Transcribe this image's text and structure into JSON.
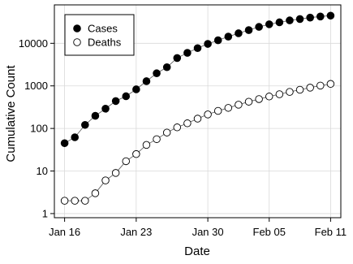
{
  "chart_data": {
    "type": "scatter",
    "subtype": "line-with-markers",
    "title": "",
    "xlabel": "Date",
    "ylabel": "Cumulative Count",
    "yscale": "log",
    "xlim": [
      "2020-01-15",
      "2020-02-12"
    ],
    "ylim": [
      0.8,
      80000
    ],
    "grid": true,
    "legend_position": "top-left",
    "x_ticks": [
      {
        "date": "2020-01-16",
        "label": "Jan 16"
      },
      {
        "date": "2020-01-23",
        "label": "Jan 23"
      },
      {
        "date": "2020-01-30",
        "label": "Jan 30"
      },
      {
        "date": "2020-02-05",
        "label": "Feb 05"
      },
      {
        "date": "2020-02-11",
        "label": "Feb 11"
      }
    ],
    "y_ticks": [
      {
        "value": 1,
        "label": "1"
      },
      {
        "value": 10,
        "label": "10"
      },
      {
        "value": 100,
        "label": "100"
      },
      {
        "value": 1000,
        "label": "1000"
      },
      {
        "value": 10000,
        "label": "10000"
      }
    ],
    "dates": [
      "2020-01-16",
      "2020-01-17",
      "2020-01-18",
      "2020-01-19",
      "2020-01-20",
      "2020-01-21",
      "2020-01-22",
      "2020-01-23",
      "2020-01-24",
      "2020-01-25",
      "2020-01-26",
      "2020-01-27",
      "2020-01-28",
      "2020-01-29",
      "2020-01-30",
      "2020-01-31",
      "2020-02-01",
      "2020-02-02",
      "2020-02-03",
      "2020-02-04",
      "2020-02-05",
      "2020-02-06",
      "2020-02-07",
      "2020-02-08",
      "2020-02-09",
      "2020-02-10",
      "2020-02-11"
    ],
    "series": [
      {
        "name": "Cases",
        "marker": "filled-circle",
        "color": "#000000",
        "values": [
          45,
          62,
          121,
          198,
          291,
          440,
          571,
          830,
          1287,
          1975,
          2744,
          4515,
          5974,
          7711,
          9692,
          11791,
          14380,
          17205,
          20438,
          24324,
          28018,
          31161,
          34546,
          37198,
          40171,
          42638,
          44653
        ]
      },
      {
        "name": "Deaths",
        "marker": "open-circle",
        "color": "#000000",
        "values": [
          2,
          2,
          2,
          3,
          6,
          9,
          17,
          25,
          41,
          56,
          80,
          106,
          132,
          170,
          213,
          259,
          304,
          361,
          425,
          490,
          563,
          636,
          722,
          811,
          908,
          1016,
          1113
        ]
      }
    ]
  }
}
